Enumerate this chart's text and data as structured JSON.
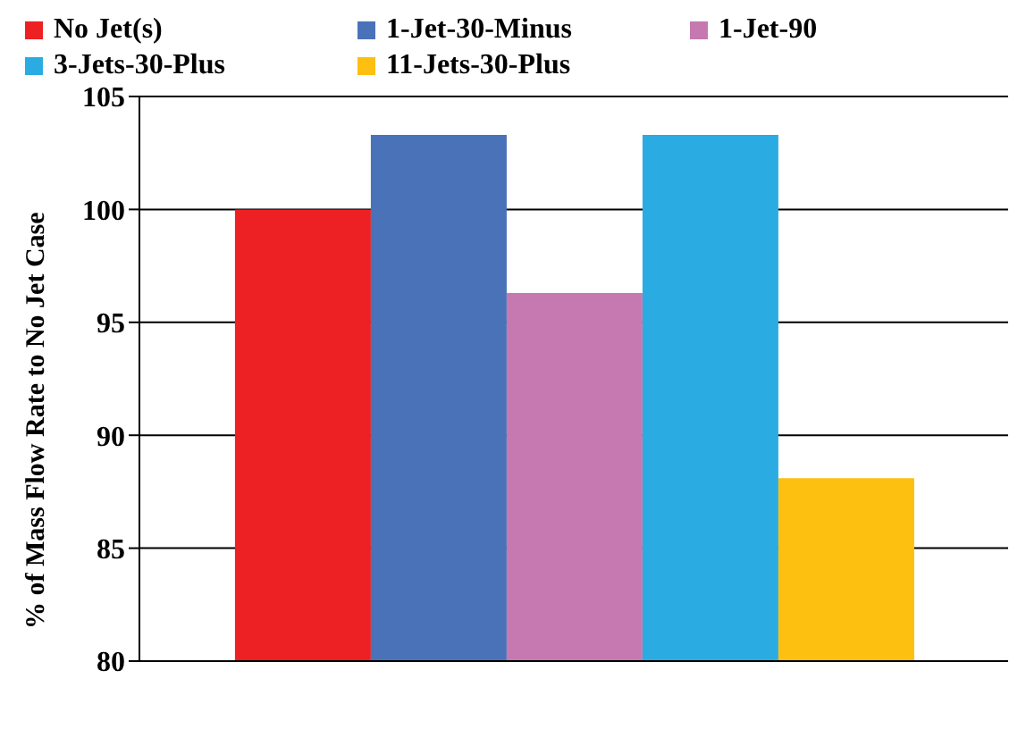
{
  "chart_data": {
    "type": "bar",
    "ylabel": "% of Mass Flow Rate to No Jet Case",
    "categories": [
      null
    ],
    "series": [
      {
        "name": "No Jet(s)",
        "color": "#ed2024",
        "values": [
          100
        ]
      },
      {
        "name": "1-Jet-30-Minus",
        "color": "#4a72b8",
        "values": [
          103.3
        ]
      },
      {
        "name": "1-Jet-90",
        "color": "#c678b0",
        "values": [
          96.3
        ]
      },
      {
        "name": "3-Jets-30-Plus",
        "color": "#2aace2",
        "values": [
          103.3
        ]
      },
      {
        "name": "11-Jets-30-Plus",
        "color": "#fdbf10",
        "values": [
          88.1
        ]
      }
    ],
    "ylim": [
      80,
      105
    ],
    "yticks": [
      80,
      85,
      90,
      95,
      100,
      105
    ],
    "grid": "y",
    "legend": "top"
  }
}
